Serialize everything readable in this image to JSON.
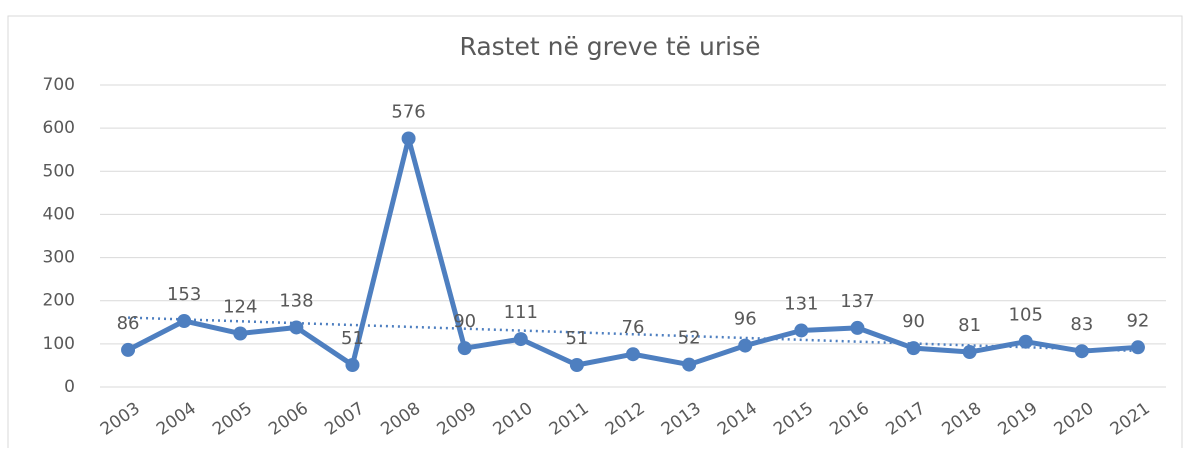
{
  "chart_data": {
    "type": "line",
    "title": "Rastet në greve të urisë",
    "categories": [
      "2003",
      "2004",
      "2005",
      "2006",
      "2007",
      "2008",
      "2009",
      "2010",
      "2011",
      "2012",
      "2013",
      "2014",
      "2015",
      "2016",
      "2017",
      "2018",
      "2019",
      "2020",
      "2021"
    ],
    "series": [
      {
        "name": "Rastet",
        "color": "#4e7fc0",
        "values": [
          86,
          153,
          124,
          138,
          51,
          576,
          90,
          111,
          51,
          76,
          52,
          96,
          131,
          137,
          90,
          81,
          105,
          83,
          92
        ]
      }
    ],
    "ylim": [
      0,
      700
    ],
    "yticks": [
      0,
      100,
      200,
      300,
      400,
      500,
      600,
      700
    ],
    "grid": true,
    "trendline": true,
    "data_labels": true
  }
}
